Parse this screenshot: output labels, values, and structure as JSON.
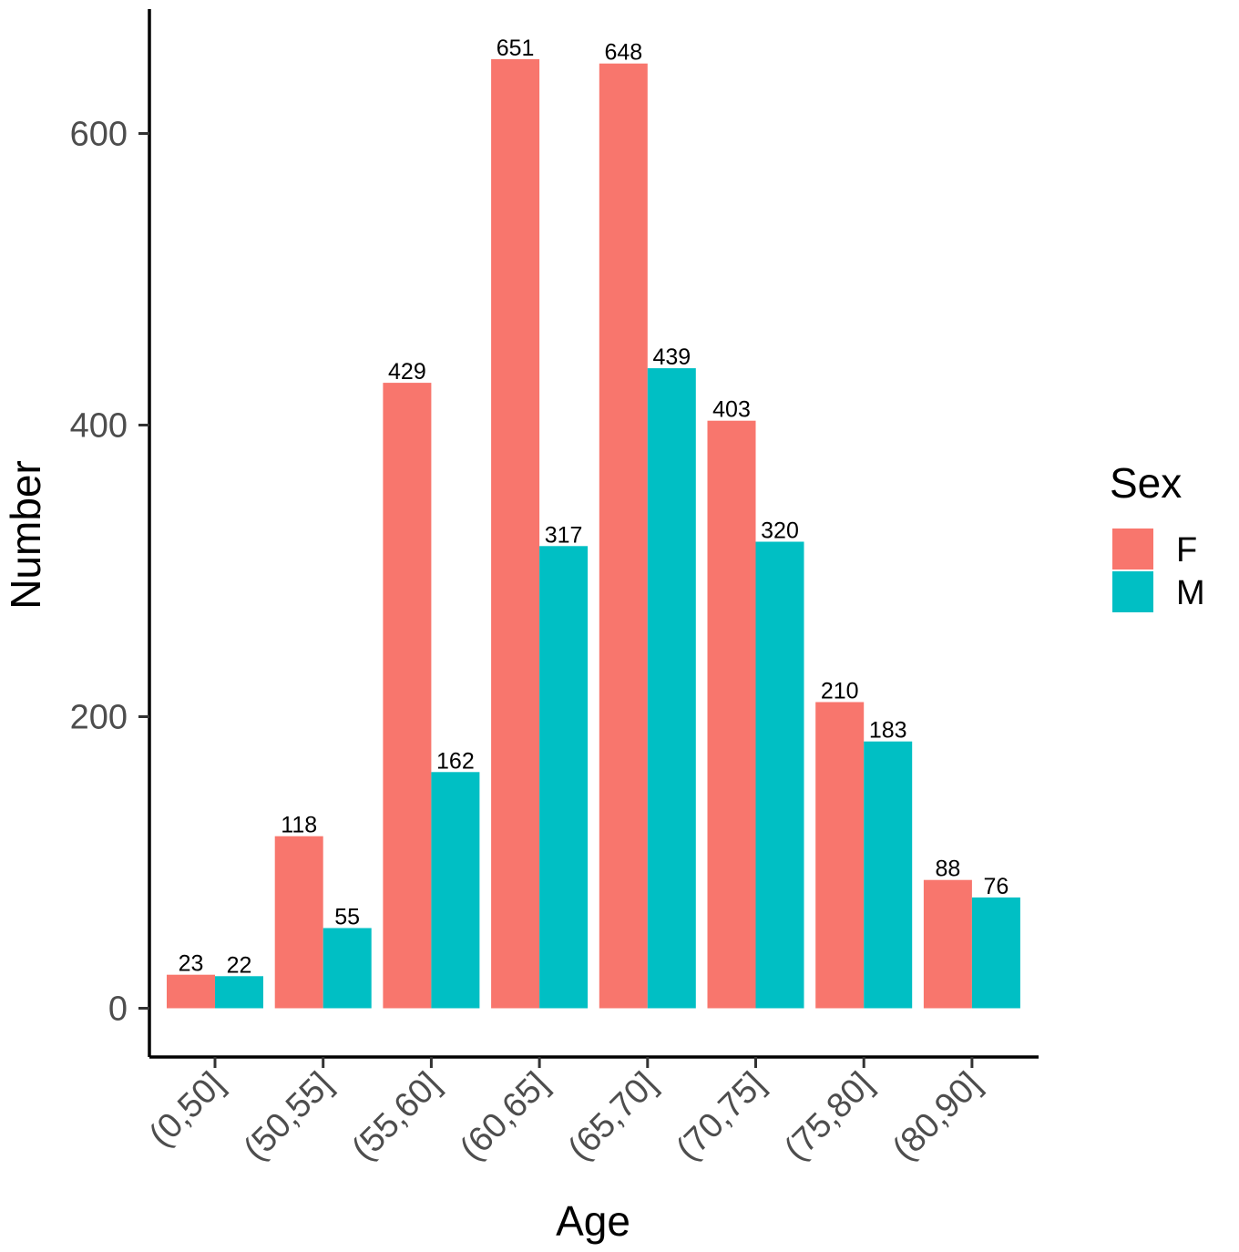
{
  "chart_data": {
    "type": "bar",
    "xlabel": "Age",
    "ylabel": "Number",
    "categories": [
      "(0,50]",
      "(50,55]",
      "(55,60]",
      "(60,65]",
      "(65,70]",
      "(70,75]",
      "(75,80]",
      "(80,90]"
    ],
    "series": [
      {
        "name": "F",
        "color": "#F8766D",
        "values": [
          23,
          118,
          429,
          651,
          648,
          403,
          210,
          88
        ]
      },
      {
        "name": "M",
        "color": "#00BFC4",
        "values": [
          22,
          55,
          162,
          317,
          439,
          320,
          183,
          76
        ]
      }
    ],
    "yticks": [
      0,
      200,
      400,
      600
    ],
    "ylim": [
      0,
      680
    ],
    "legend": {
      "title": "Sex",
      "position": "right"
    },
    "grid": false
  }
}
